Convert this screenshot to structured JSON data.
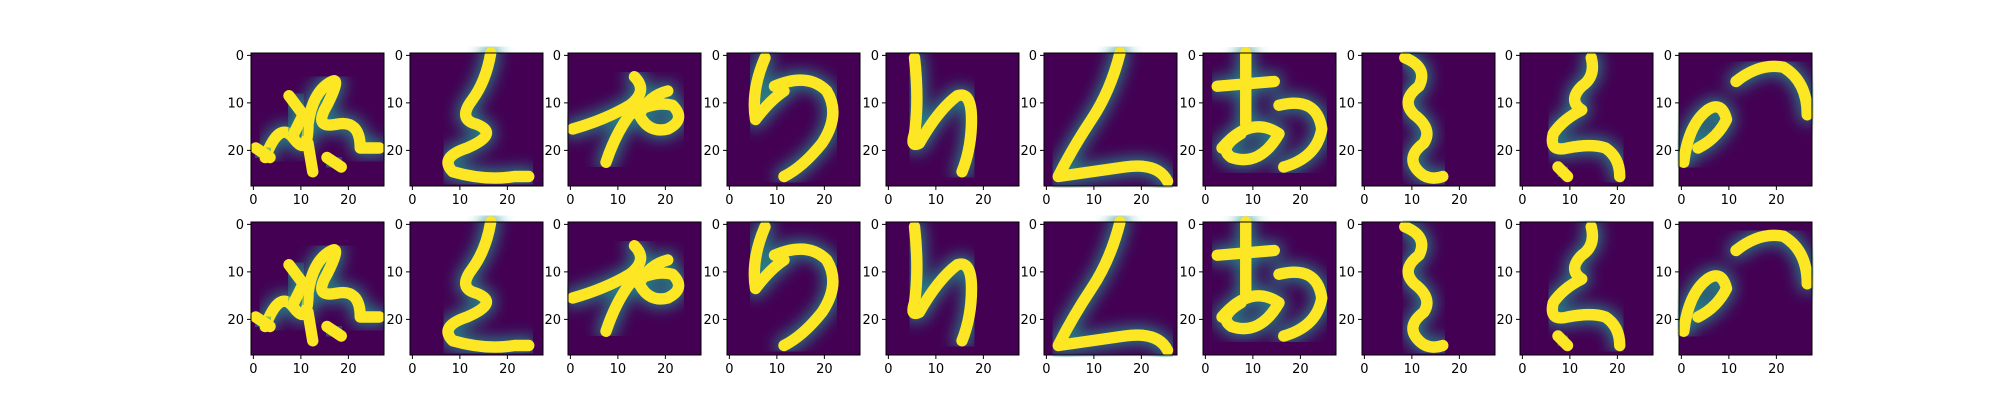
{
  "chart_data": {
    "type": "image-grid",
    "rows": 2,
    "columns": 10,
    "colormap": "viridis",
    "image_size": [
      28,
      28
    ],
    "xticks": [
      0,
      10,
      20
    ],
    "yticks": [
      0,
      10,
      20
    ],
    "xtick_labels": [
      "0",
      "10",
      "20"
    ],
    "ytick_labels": [
      "0",
      "10",
      "20"
    ],
    "background_value_color": "#440154",
    "foreground_value_color": "#fde725",
    "panels": [
      {
        "row": 0,
        "col": 0
      },
      {
        "row": 0,
        "col": 1
      },
      {
        "row": 0,
        "col": 2
      },
      {
        "row": 0,
        "col": 3
      },
      {
        "row": 0,
        "col": 4
      },
      {
        "row": 0,
        "col": 5
      },
      {
        "row": 0,
        "col": 6
      },
      {
        "row": 0,
        "col": 7
      },
      {
        "row": 0,
        "col": 8
      },
      {
        "row": 0,
        "col": 9
      },
      {
        "row": 1,
        "col": 0
      },
      {
        "row": 1,
        "col": 1
      },
      {
        "row": 1,
        "col": 2
      },
      {
        "row": 1,
        "col": 3
      },
      {
        "row": 1,
        "col": 4
      },
      {
        "row": 1,
        "col": 5
      },
      {
        "row": 1,
        "col": 6
      },
      {
        "row": 1,
        "col": 7
      },
      {
        "row": 1,
        "col": 8
      },
      {
        "row": 1,
        "col": 9
      }
    ]
  }
}
